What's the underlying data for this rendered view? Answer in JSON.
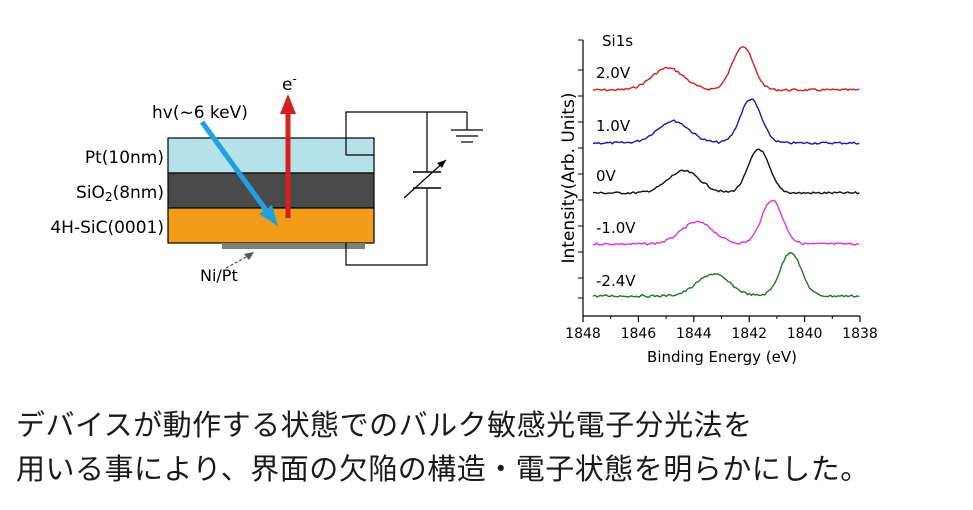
{
  "device": {
    "layers": [
      {
        "label": "Pt(10nm)",
        "color": "#b4e2e8"
      },
      {
        "label_main": "SiO",
        "label_sub": "2",
        "label_tail": "(8nm)",
        "color": "#4a4a4a"
      },
      {
        "label": "4H-SiC(0001)",
        "color": "#f29c1a"
      }
    ],
    "contact_label": "Ni/Pt",
    "photon_label": "hv(~6 keV)",
    "electron_label": "e",
    "electron_sup": "-",
    "colors": {
      "photon": "#1fa0e0",
      "electron": "#d81f1f",
      "contact": "#7f7f7f"
    }
  },
  "chart_data": {
    "type": "line",
    "title": "",
    "xlabel": "Binding Energy (eV)",
    "ylabel": "Intensity(Arb. Units)",
    "xlim": [
      1848,
      1838
    ],
    "xticks": [
      1848,
      1846,
      1844,
      1842,
      1840,
      1838
    ],
    "annotation": "Si1s",
    "series": [
      {
        "name": "2.0V",
        "color": "#cc2222",
        "peak1": 1845.2,
        "peak2": 1842.4
      },
      {
        "name": "1.0V",
        "color": "#1a1aa0",
        "peak1": 1845.0,
        "peak2": 1842.1
      },
      {
        "name": "0V",
        "color": "#111111",
        "peak1": 1844.6,
        "peak2": 1841.8
      },
      {
        "name": "-1.0V",
        "color": "#dd33dd",
        "peak1": 1844.1,
        "peak2": 1841.3
      },
      {
        "name": "-2.4V",
        "color": "#227722",
        "peak1": 1843.5,
        "peak2": 1840.6
      }
    ]
  },
  "caption": {
    "line1": "デバイスが動作する状態でのバルク敏感光電子分光法を",
    "line2": "用いる事により、界面の欠陥の構造・電子状態を明らかにした。"
  }
}
